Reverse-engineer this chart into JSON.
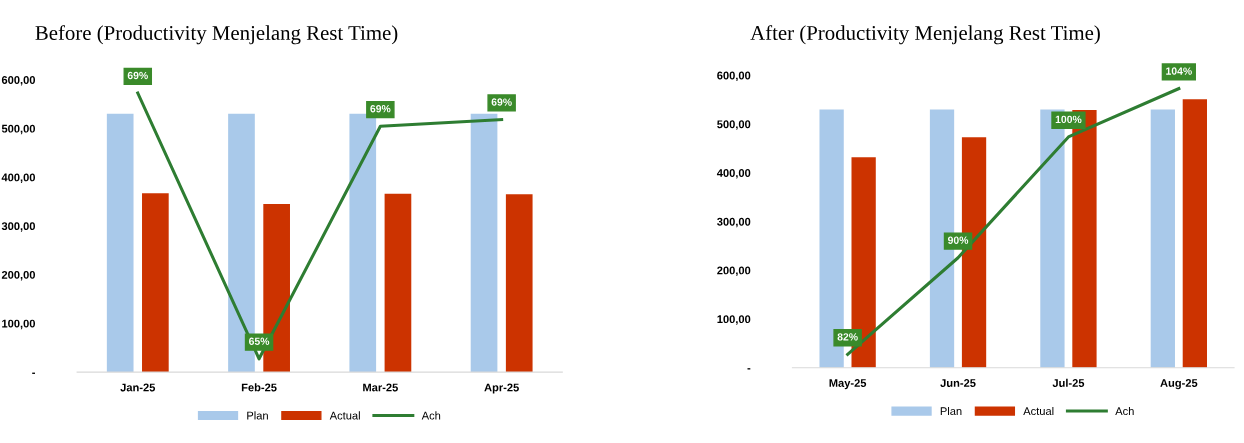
{
  "chart_data": [
    {
      "type": "bar",
      "title": "Before (Productivity Menjelang Rest Time)",
      "categories": [
        "Jan-25",
        "Feb-25",
        "Mar-25",
        "Apr-25"
      ],
      "series": [
        {
          "name": "Plan",
          "color": "#a9c9ea",
          "values": [
            530,
            530,
            530,
            530
          ]
        },
        {
          "name": "Actual",
          "color": "#cc3300",
          "values": [
            367,
            345,
            366,
            365
          ]
        },
        {
          "name": "Ach",
          "type": "line",
          "axis": "y2",
          "color": "#2e7d32",
          "values": [
            69.3,
            65.3,
            68.8,
            68.9
          ],
          "value_labels": [
            "69%",
            "65%",
            "69%",
            "69%"
          ]
        }
      ],
      "ylim": [
        0,
        600
      ],
      "yticks": [
        {
          "value": 0,
          "label": "-"
        },
        {
          "value": 100,
          "label": "100,00"
        },
        {
          "value": 200,
          "label": "200,00"
        },
        {
          "value": 300,
          "label": "300,00"
        },
        {
          "value": 400,
          "label": "400,00"
        },
        {
          "value": 500,
          "label": "500,00"
        },
        {
          "value": 600,
          "label": "600,00"
        }
      ],
      "legend": "bottom",
      "grid": false,
      "marker": "none",
      "line_style": "solid"
    },
    {
      "type": "bar",
      "title": "After (Productivity Menjelang Rest Time)",
      "categories": [
        "May-25",
        "Jun-25",
        "Jul-25",
        "Aug-25"
      ],
      "series": [
        {
          "name": "Plan",
          "color": "#a9c9ea",
          "values": [
            530,
            530,
            530,
            530
          ]
        },
        {
          "name": "Actual",
          "color": "#cc3300",
          "values": [
            432,
            473,
            529,
            551
          ]
        },
        {
          "name": "Ach",
          "type": "line",
          "axis": "y2",
          "color": "#2e7d32",
          "values": [
            82,
            90,
            100,
            104
          ],
          "value_labels": [
            "82%",
            "90%",
            "100%",
            "104%"
          ]
        }
      ],
      "ylim": [
        0,
        600
      ],
      "yticks": [
        {
          "value": 0,
          "label": "-"
        },
        {
          "value": 100,
          "label": "100,00"
        },
        {
          "value": 200,
          "label": "200,00"
        },
        {
          "value": 300,
          "label": "300,00"
        },
        {
          "value": 400,
          "label": "400,00"
        },
        {
          "value": 500,
          "label": "500,00"
        },
        {
          "value": 600,
          "label": "600,00"
        }
      ],
      "legend": "bottom",
      "grid": false,
      "marker": "none",
      "line_style": "solid"
    }
  ]
}
